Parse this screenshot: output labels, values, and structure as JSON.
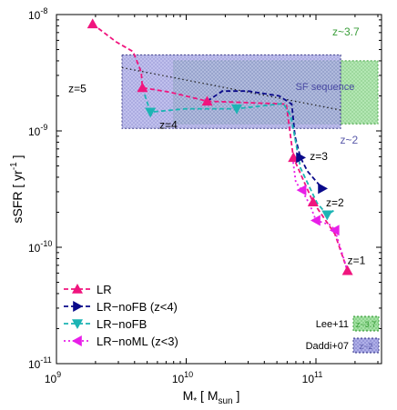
{
  "chart_data": {
    "type": "line",
    "xlabel": "M∗ [ Msun ]",
    "xlabel_parts": {
      "main": "M",
      "sub_star": "*",
      "bracket_open": " [ M",
      "sub_sun": "sun",
      "bracket_close": " ]"
    },
    "ylabel": "sSFR [ yr⁻¹ ]",
    "ylabel_parts": {
      "main": "sSFR [ yr",
      "sup": "-1",
      "close": " ]"
    },
    "xscale": "log",
    "yscale": "log",
    "xlim": [
      1000000000.0,
      320000000000.0
    ],
    "ylim": [
      1e-11,
      1e-08
    ],
    "x_ticks": [
      {
        "value": 1000000000.0,
        "base": "10",
        "exp": "9"
      },
      {
        "value": 10000000000.0,
        "base": "10",
        "exp": "10"
      },
      {
        "value": 100000000000.0,
        "base": "10",
        "exp": "11"
      }
    ],
    "y_ticks": [
      {
        "value": 1e-11,
        "base": "10",
        "exp": "-11"
      },
      {
        "value": 1e-10,
        "base": "10",
        "exp": "-10"
      },
      {
        "value": 1e-09,
        "base": "10",
        "exp": "-9"
      },
      {
        "value": 1e-08,
        "base": "10",
        "exp": "-8"
      }
    ],
    "regions": [
      {
        "name": "Lee+11",
        "label": "z~3.7",
        "color": "#7fd67f",
        "x": [
          8000000000.0,
          300000000000.0
        ],
        "y": [
          1.15e-09,
          4e-09
        ]
      },
      {
        "name": "Daddi+07",
        "label": "z~2",
        "color": "#8e8ed8",
        "x": [
          3200000000.0,
          155000000000.0
        ],
        "y": [
          1.05e-09,
          4.5e-09
        ]
      }
    ],
    "sf_sequence": {
      "label": "SF sequence",
      "x": [
        3200000000.0,
        160000000000.0
      ],
      "y": [
        3.5e-09,
        1.5e-09
      ]
    },
    "series": [
      {
        "name": "LR",
        "color": "#f0157e",
        "marker": "triangle-up",
        "visible_legend": true,
        "points": [
          [
            1900000000.0,
            8.3e-09
          ],
          [
            4600000000.0,
            2.35e-09
          ],
          [
            14500000000.0,
            1.8e-09
          ],
          [
            67000000000.0,
            5.9e-10
          ],
          [
            95000000000.0,
            2.45e-10
          ],
          [
            175000000000.0,
            6.3e-11
          ]
        ],
        "path": [
          [
            1900000000.0,
            8.3e-09
          ],
          [
            2900000000.0,
            5.8e-09
          ],
          [
            3900000000.0,
            4.8e-09
          ],
          [
            4500000000.0,
            3.2e-09
          ],
          [
            4600000000.0,
            2.35e-09
          ],
          [
            7500000000.0,
            2.15e-09
          ],
          [
            14500000000.0,
            1.8e-09
          ],
          [
            59000000000.0,
            1.7e-09
          ],
          [
            67000000000.0,
            5.9e-10
          ],
          [
            95000000000.0,
            2.45e-10
          ],
          [
            140000000000.0,
            1.3e-10
          ],
          [
            175000000000.0,
            6.3e-11
          ]
        ]
      },
      {
        "name": "LR−noFB (z<4)",
        "color": "#0a0a8a",
        "marker": "triangle-right",
        "visible_legend": true,
        "points": [
          [
            76000000000.0,
            5.9e-10
          ],
          [
            112000000000.0,
            3.2e-10
          ]
        ],
        "path": [
          [
            14500000000.0,
            1.8e-09
          ],
          [
            19000000000.0,
            2.2e-09
          ],
          [
            30000000000.0,
            2.2e-09
          ],
          [
            52000000000.0,
            2e-09
          ],
          [
            65000000000.0,
            1.7e-09
          ],
          [
            69000000000.0,
            9e-10
          ],
          [
            76000000000.0,
            5.9e-10
          ],
          [
            86000000000.0,
            4.5e-10
          ],
          [
            112000000000.0,
            3.2e-10
          ]
        ]
      },
      {
        "name": "LR−noFB",
        "color": "#1cb4b4",
        "marker": "triangle-down",
        "visible_legend": true,
        "points": [
          [
            5300000000.0,
            1.45e-09
          ],
          [
            24500000000.0,
            1.55e-09
          ],
          [
            122000000000.0,
            1.9e-10
          ]
        ],
        "path": [
          [
            4600000000.0,
            2.35e-09
          ],
          [
            5300000000.0,
            1.45e-09
          ],
          [
            10000000000.0,
            1.55e-09
          ],
          [
            24500000000.0,
            1.55e-09
          ],
          [
            56000000000.0,
            1.72e-09
          ],
          [
            64000000000.0,
            1.35e-09
          ],
          [
            76000000000.0,
            4.8e-10
          ],
          [
            102000000000.0,
            2.4e-10
          ],
          [
            122000000000.0,
            1.9e-10
          ],
          [
            140000000000.0,
            2.1e-10
          ]
        ]
      },
      {
        "name": "LR−noML (z<3)",
        "color": "#e81ee8",
        "marker": "triangle-left",
        "visible_legend": true,
        "points": [
          [
            78000000000.0,
            3.1e-10
          ],
          [
            100000000000.0,
            1.7e-10
          ],
          [
            140000000000.0,
            1.4e-10
          ]
        ],
        "path": [
          [
            66000000000.0,
            5.9e-10
          ],
          [
            70000000000.0,
            3.6e-10
          ],
          [
            78000000000.0,
            3.1e-10
          ],
          [
            90000000000.0,
            2.3e-10
          ],
          [
            100000000000.0,
            1.7e-10
          ],
          [
            130000000000.0,
            1.55e-10
          ],
          [
            140000000000.0,
            1.4e-10
          ],
          [
            175000000000.0,
            6.3e-11
          ]
        ]
      }
    ],
    "annotations": [
      {
        "text": "z~3.7",
        "color": "#3a9e3a",
        "x": 170000000000.0,
        "y": 6.6e-09
      },
      {
        "text": "z=5",
        "color": "#000000",
        "x": 1450000000.0,
        "y": 2.15e-09
      },
      {
        "text": "z=4",
        "color": "#000000",
        "x": 7300000000.0,
        "y": 1.05e-09
      },
      {
        "text": "z~2",
        "color": "#5a5aaa",
        "x": 180000000000.0,
        "y": 7.8e-10
      },
      {
        "text": "z=3",
        "color": "#000000",
        "x": 105000000000.0,
        "y": 5.6e-10
      },
      {
        "text": "z=2",
        "color": "#000000",
        "x": 140000000000.0,
        "y": 2.25e-10
      },
      {
        "text": "z=1",
        "color": "#000000",
        "x": 205000000000.0,
        "y": 7.2e-11
      }
    ],
    "ref_legend": [
      {
        "label": "Lee+11",
        "swatch": "z~3.7",
        "color": "#7fd67f",
        "text_color": "#3a9e3a"
      },
      {
        "label": "Daddi+07",
        "swatch": "z~2",
        "color": "#8e8ed8",
        "text_color": "#5a5aaa"
      }
    ],
    "legend_placement": "bottom-left"
  }
}
